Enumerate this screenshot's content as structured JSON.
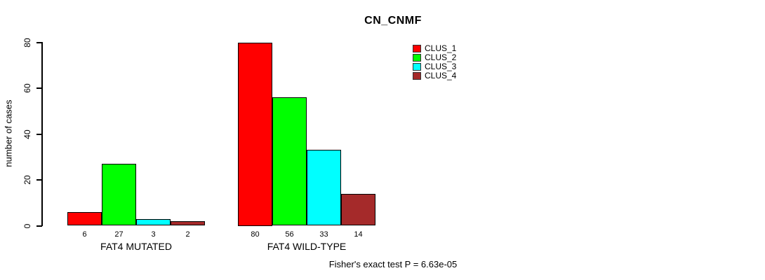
{
  "chart_data": {
    "type": "bar",
    "title": "CN_CNMF",
    "xlabel": "",
    "ylabel": "number of cases",
    "ylim": [
      0,
      80
    ],
    "yticks": [
      0,
      20,
      40,
      60,
      80
    ],
    "grid": false,
    "legend_position": "top-right",
    "categories": [
      "FAT4 MUTATED",
      "FAT4 WILD-TYPE"
    ],
    "series": [
      {
        "name": "CLUS_1",
        "color": "#ff0000",
        "values": [
          6,
          80
        ]
      },
      {
        "name": "CLUS_2",
        "color": "#00ff00",
        "values": [
          27,
          56
        ]
      },
      {
        "name": "CLUS_3",
        "color": "#00ffff",
        "values": [
          3,
          33
        ]
      },
      {
        "name": "CLUS_4",
        "color": "#a52a2a",
        "values": [
          2,
          14
        ]
      }
    ],
    "bar_value_labels": [
      [
        6,
        27,
        3,
        2
      ],
      [
        80,
        56,
        33,
        14
      ]
    ]
  },
  "footer": {
    "text": "Fisher's exact test P = 6.63e-05"
  }
}
